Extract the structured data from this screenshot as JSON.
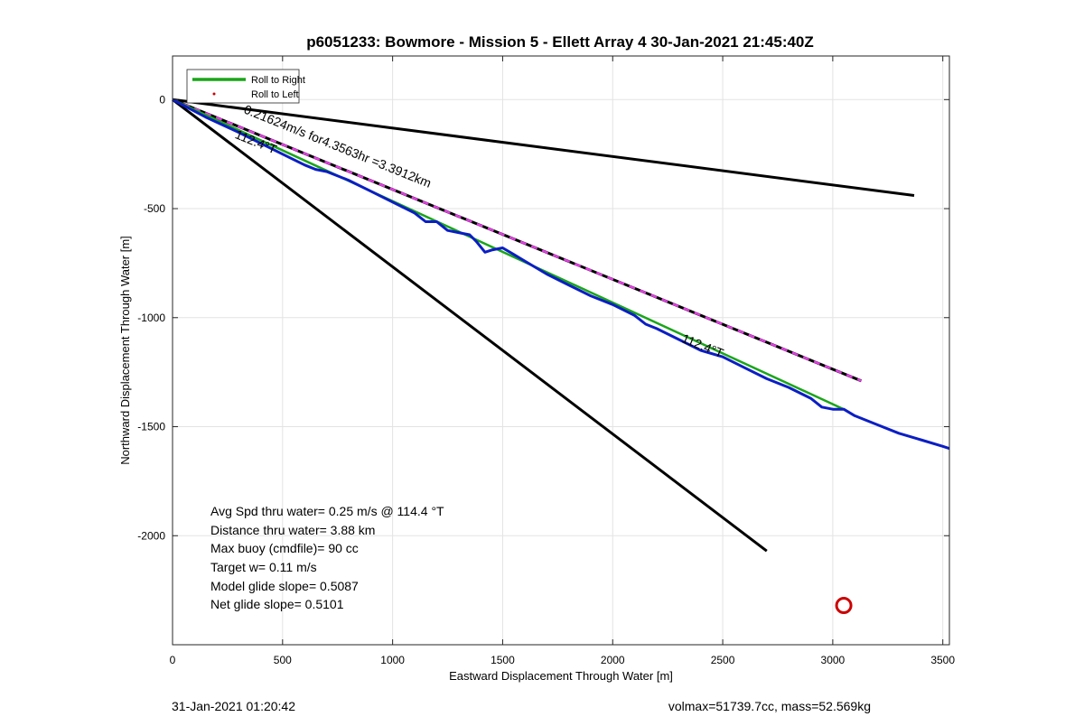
{
  "chart_data": {
    "type": "line",
    "title": "p6051233: Bowmore - Mission 5 - Ellett Array 4 30-Jan-2021 21:45:40Z",
    "xlabel": "Eastward Displacement Through Water [m]",
    "ylabel": "Northward Displacement Through Water [m]",
    "xlim": [
      0,
      3530
    ],
    "ylim": [
      -2500,
      200
    ],
    "xticks": [
      0,
      500,
      1000,
      1500,
      2000,
      2500,
      3000,
      3500
    ],
    "yticks": [
      -2000,
      -1500,
      -1000,
      -500,
      0
    ],
    "grid": true,
    "legend": {
      "placement": "top-left",
      "entries": [
        "Roll to Right",
        "Roll to Left"
      ]
    },
    "series": [
      {
        "name": "Roll to Right",
        "color": "#1aa51a",
        "x": [
          0,
          3050
        ],
        "y": [
          0,
          -1420
        ]
      },
      {
        "name": "",
        "color": "#0b1ec4",
        "x": [
          0,
          150,
          300,
          400,
          500,
          600,
          650,
          700,
          800,
          900,
          1000,
          1100,
          1150,
          1200,
          1250,
          1300,
          1350,
          1380,
          1420,
          1450,
          1500,
          1550,
          1600,
          1700,
          1800,
          1900,
          2000,
          2100,
          2150,
          2200,
          2300,
          2400,
          2500,
          2600,
          2700,
          2800,
          2900,
          2950,
          3000,
          3050,
          3100,
          3200,
          3300,
          3400,
          3500,
          3530
        ],
        "y": [
          0,
          -80,
          -150,
          -200,
          -250,
          -300,
          -320,
          -330,
          -370,
          -420,
          -470,
          -520,
          -560,
          -560,
          -600,
          -610,
          -620,
          -650,
          -700,
          -690,
          -680,
          -710,
          -740,
          -800,
          -850,
          -900,
          -940,
          -990,
          -1030,
          -1050,
          -1100,
          -1150,
          -1180,
          -1230,
          -1280,
          -1320,
          -1370,
          -1410,
          -1420,
          -1420,
          -1450,
          -1490,
          -1530,
          -1560,
          -1590,
          -1600
        ]
      }
    ],
    "lines": [
      {
        "color": "#000000",
        "x": [
          0,
          3370
        ],
        "y": [
          0,
          -440
        ]
      },
      {
        "color": "#000000",
        "x": [
          0,
          2700
        ],
        "y": [
          0,
          -2070
        ]
      },
      {
        "color": "#000000",
        "x": [
          0,
          3130
        ],
        "y": [
          0,
          -1290
        ]
      }
    ],
    "dashed_overlay": {
      "color": "#e83ee8",
      "x": [
        0,
        3130
      ],
      "y": [
        0,
        -1290
      ]
    },
    "marker": {
      "color": "#cc0000",
      "x": 3050,
      "y": -2320
    },
    "annotations": [
      {
        "text": "0.21624m/s for4.3563hr =3.3912km",
        "x": 320,
        "y": -60,
        "angle_deg": 22
      },
      {
        "text": "112.4°T",
        "x": 280,
        "y": -175,
        "angle_deg": 22
      },
      {
        "text": "112.4°T",
        "x": 2310,
        "y": -1110,
        "angle_deg": 22
      }
    ],
    "stats": [
      "Avg Spd thru water=  0.25 m/s @ 114.4 °T",
      "Distance thru water=  3.88 km",
      "Max buoy (cmdfile)= 90 cc",
      "Target w= 0.11 m/s",
      "Model glide slope= 0.5087",
      "Net glide slope= 0.5101"
    ]
  },
  "footer": {
    "left": "31-Jan-2021 01:20:42",
    "right": "volmax=51739.7cc, mass=52.569kg"
  }
}
